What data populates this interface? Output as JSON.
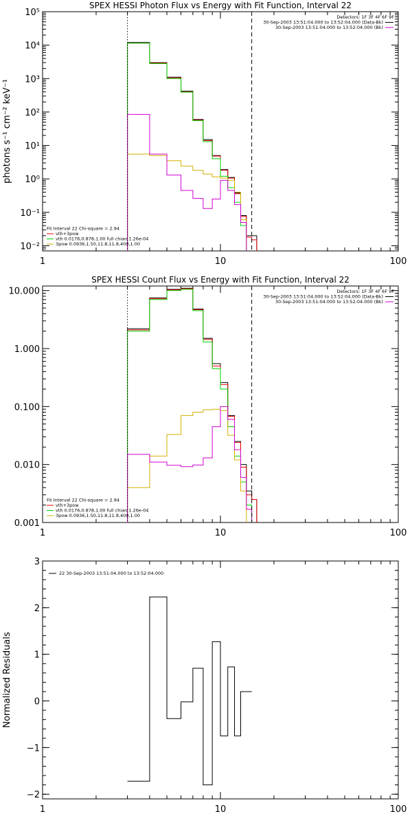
{
  "chart_data": [
    {
      "type": "line",
      "title": "SPEX HESSI Photon Flux vs Energy with Fit Function, Interval 22",
      "ylabel": "photons s⁻¹ cm⁻² keV⁻¹",
      "xlabel": "",
      "xscale": "log",
      "yscale": "log",
      "xlim": [
        1,
        100
      ],
      "ylim": [
        0.007,
        100000
      ],
      "xticks": [
        {
          "v": 1,
          "label": "1"
        },
        {
          "v": 10,
          "label": "10"
        },
        {
          "v": 100,
          "label": "100"
        }
      ],
      "yticks": [
        {
          "v": 0.01,
          "label": "10⁻²"
        },
        {
          "v": 0.1,
          "label": "10⁻¹"
        },
        {
          "v": 1,
          "label": "10⁰"
        },
        {
          "v": 10,
          "label": "10¹"
        },
        {
          "v": 100,
          "label": "10²"
        },
        {
          "v": 1000,
          "label": "10³"
        },
        {
          "v": 10000,
          "label": "10⁴"
        },
        {
          "v": 100000,
          "label": "10⁵"
        }
      ],
      "vlines": [
        {
          "x": 3.0,
          "style": "dotted",
          "color": "#000000"
        },
        {
          "x": 15.0,
          "style": "dashed",
          "color": "#000000"
        }
      ],
      "legend_tr": [
        {
          "text": "Detectors: 1F 3F 4F 6F 9F",
          "line": false,
          "color": "#000000"
        },
        {
          "text": "30-Sep-2003 13:51:04.000 to 13:52:04.000 (Data-Bk)",
          "line": true,
          "color": "#000000"
        },
        {
          "text": "30-Sep-2003 13:51:04.000 to 13:52:04.000 (Bk)",
          "line": true,
          "color": "#d000d0"
        }
      ],
      "legend_bl": [
        {
          "text": "Fit Interval 22   Chi-square = 2.94",
          "line": false,
          "color": "#000000"
        },
        {
          "text": "vth+3pow",
          "line": true,
          "color": "#e00000"
        },
        {
          "text": "vth 0.0176,0.878,1.00  full chian 1.26e-04",
          "line": true,
          "color": "#00d000"
        },
        {
          "text": "3pow 0.0936,1.50,11.8,11.8,400,1.00",
          "line": true,
          "color": "#d0b000"
        }
      ],
      "series": [
        {
          "color": "#000000",
          "edges": [
            3,
            4,
            5,
            6,
            7,
            8,
            9,
            10,
            11,
            12,
            13,
            14,
            15,
            16
          ],
          "values": [
            12000,
            3000,
            1100,
            420,
            60,
            15,
            5,
            1.9,
            1.1,
            0.38,
            0.08,
            0.02,
            0.02
          ]
        },
        {
          "color": "#e00000",
          "edges": [
            3,
            4,
            5,
            6,
            7,
            8,
            9,
            10,
            11,
            12,
            13,
            14,
            15,
            16
          ],
          "values": [
            11500,
            2900,
            1050,
            400,
            57,
            14,
            4.8,
            1.8,
            1.05,
            0.36,
            0.075,
            0.018,
            0.015
          ]
        },
        {
          "color": "#00d000",
          "edges": [
            3,
            4,
            5,
            6,
            7,
            8,
            9,
            10,
            11,
            12,
            13,
            14,
            15,
            16
          ],
          "values": [
            11500,
            2800,
            1000,
            390,
            55,
            13,
            4.0,
            1.2,
            0.55,
            0.2,
            0.04,
            0.006,
            0.006
          ]
        },
        {
          "color": "#d0b000",
          "edges": [
            3,
            4,
            5,
            6,
            7,
            8,
            9,
            10,
            11,
            12,
            13,
            14,
            15,
            16
          ],
          "values": [
            5.5,
            5.0,
            3.5,
            2.4,
            1.8,
            1.4,
            1.15,
            1.05,
            0.9,
            0.4,
            0.06,
            0.006,
            0.006
          ]
        },
        {
          "color": "#d000d0",
          "edges": [
            3,
            4,
            5,
            6,
            7,
            8,
            9,
            10,
            11,
            12,
            13,
            14,
            15,
            16
          ],
          "values": [
            85,
            5.5,
            1.3,
            0.45,
            0.26,
            0.13,
            0.25,
            0.9,
            0.45,
            0.17,
            0.05,
            0.006,
            0.006
          ]
        }
      ]
    },
    {
      "type": "line",
      "title": "SPEX HESSI Count Flux vs Energy with Fit Function, Interval 22",
      "ylabel": "",
      "xlabel": "",
      "xscale": "log",
      "yscale": "log",
      "xlim": [
        1,
        100
      ],
      "ylim": [
        0.001,
        12
      ],
      "xticks": [
        {
          "v": 1,
          "label": "1"
        },
        {
          "v": 10,
          "label": "10"
        },
        {
          "v": 100,
          "label": "100"
        }
      ],
      "yticks": [
        {
          "v": 0.001,
          "label": "0.001"
        },
        {
          "v": 0.01,
          "label": "0.010"
        },
        {
          "v": 0.1,
          "label": "0.100"
        },
        {
          "v": 1,
          "label": "1.000"
        },
        {
          "v": 10,
          "label": "10.000"
        }
      ],
      "vlines": [
        {
          "x": 3.0,
          "style": "dotted",
          "color": "#000000"
        },
        {
          "x": 15.0,
          "style": "dashed",
          "color": "#000000"
        }
      ],
      "legend_tr": [
        {
          "text": "Detectors: 1F 3F 4F 6F 9F",
          "line": false,
          "color": "#000000"
        },
        {
          "text": "30-Sep-2003 13:51:04.000 to 13:52:04.000 (Data-Bk)",
          "line": true,
          "color": "#000000"
        },
        {
          "text": "30-Sep-2003 13:51:04.000 to 13:52:04.000 (Bk)",
          "line": true,
          "color": "#d000d0"
        }
      ],
      "legend_bl": [
        {
          "text": "Fit Interval 22   Chi-square = 2.94",
          "line": false,
          "color": "#000000"
        },
        {
          "text": "vth+3pow",
          "line": true,
          "color": "#e00000"
        },
        {
          "text": "vth 0.0176,0.878,1.00  full chian 1.26e-04",
          "line": true,
          "color": "#00d000"
        },
        {
          "text": "3pow 0.0936,1.50,11.8,11.8,400,1.00",
          "line": true,
          "color": "#d0b000"
        }
      ],
      "series": [
        {
          "color": "#000000",
          "edges": [
            3,
            4,
            5,
            6,
            7,
            8,
            9,
            10,
            11,
            12,
            13,
            14,
            15,
            16
          ],
          "values": [
            2.2,
            7.5,
            10.5,
            11,
            4.8,
            1.5,
            0.55,
            0.26,
            0.07,
            0.025,
            0.01,
            0.0035,
            0.0025
          ]
        },
        {
          "color": "#e00000",
          "edges": [
            3,
            4,
            5,
            6,
            7,
            8,
            9,
            10,
            11,
            12,
            13,
            14,
            15,
            16
          ],
          "values": [
            2.1,
            7.3,
            10.3,
            10.8,
            4.7,
            1.45,
            0.5,
            0.24,
            0.068,
            0.024,
            0.009,
            0.003,
            0.0025
          ]
        },
        {
          "color": "#00d000",
          "edges": [
            3,
            4,
            5,
            6,
            7,
            8,
            9,
            10,
            11,
            12,
            13,
            14,
            15,
            16
          ],
          "values": [
            2.0,
            7.0,
            10.0,
            10.5,
            4.5,
            1.3,
            0.45,
            0.2,
            0.045,
            0.014,
            0.005,
            0.002,
            0.0008
          ]
        },
        {
          "color": "#d0b000",
          "edges": [
            3,
            4,
            5,
            6,
            7,
            8,
            9,
            10,
            11,
            12,
            13,
            14,
            15,
            16
          ],
          "values": [
            0.004,
            0.014,
            0.033,
            0.07,
            0.08,
            0.088,
            0.09,
            0.085,
            0.032,
            0.012,
            0.0035,
            0.0008,
            0.0008
          ]
        },
        {
          "color": "#d000d0",
          "edges": [
            3,
            4,
            5,
            6,
            7,
            8,
            9,
            10,
            11,
            12,
            13,
            14,
            15,
            16
          ],
          "values": [
            0.015,
            0.011,
            0.0097,
            0.0092,
            0.0098,
            0.013,
            0.045,
            0.1,
            0.06,
            0.018,
            0.006,
            0.0017,
            0.0008
          ]
        }
      ]
    },
    {
      "type": "line",
      "title": "",
      "ylabel": "Normalized Residuals",
      "xlabel": "",
      "xscale": "log",
      "yscale": "linear",
      "xlim": [
        1,
        100
      ],
      "ylim": [
        -2.1,
        3
      ],
      "xticks": [
        {
          "v": 1,
          "label": "1"
        },
        {
          "v": 10,
          "label": "10"
        },
        {
          "v": 100,
          "label": "100"
        }
      ],
      "yticks": [
        {
          "v": -2,
          "label": "−2"
        },
        {
          "v": -1,
          "label": "−1"
        },
        {
          "v": 0,
          "label": "0"
        },
        {
          "v": 1,
          "label": "1"
        },
        {
          "v": 2,
          "label": "2"
        },
        {
          "v": 3,
          "label": "3"
        }
      ],
      "vlines": [],
      "legend_tr": [],
      "legend_bl": [],
      "legend_tl": [
        {
          "text": "22  30-Sep-2003 13:51:04.000 to 13:52:04.000",
          "line": true,
          "color": "#000000"
        }
      ],
      "series": [
        {
          "color": "#000000",
          "edges": [
            3,
            4,
            5,
            6,
            7,
            8,
            9,
            10,
            11,
            12,
            13,
            14,
            15
          ],
          "values": [
            -1.72,
            2.23,
            -0.38,
            -0.02,
            0.7,
            -1.8,
            1.27,
            -0.75,
            0.73,
            -0.75,
            0.2,
            0.2
          ]
        }
      ]
    }
  ]
}
